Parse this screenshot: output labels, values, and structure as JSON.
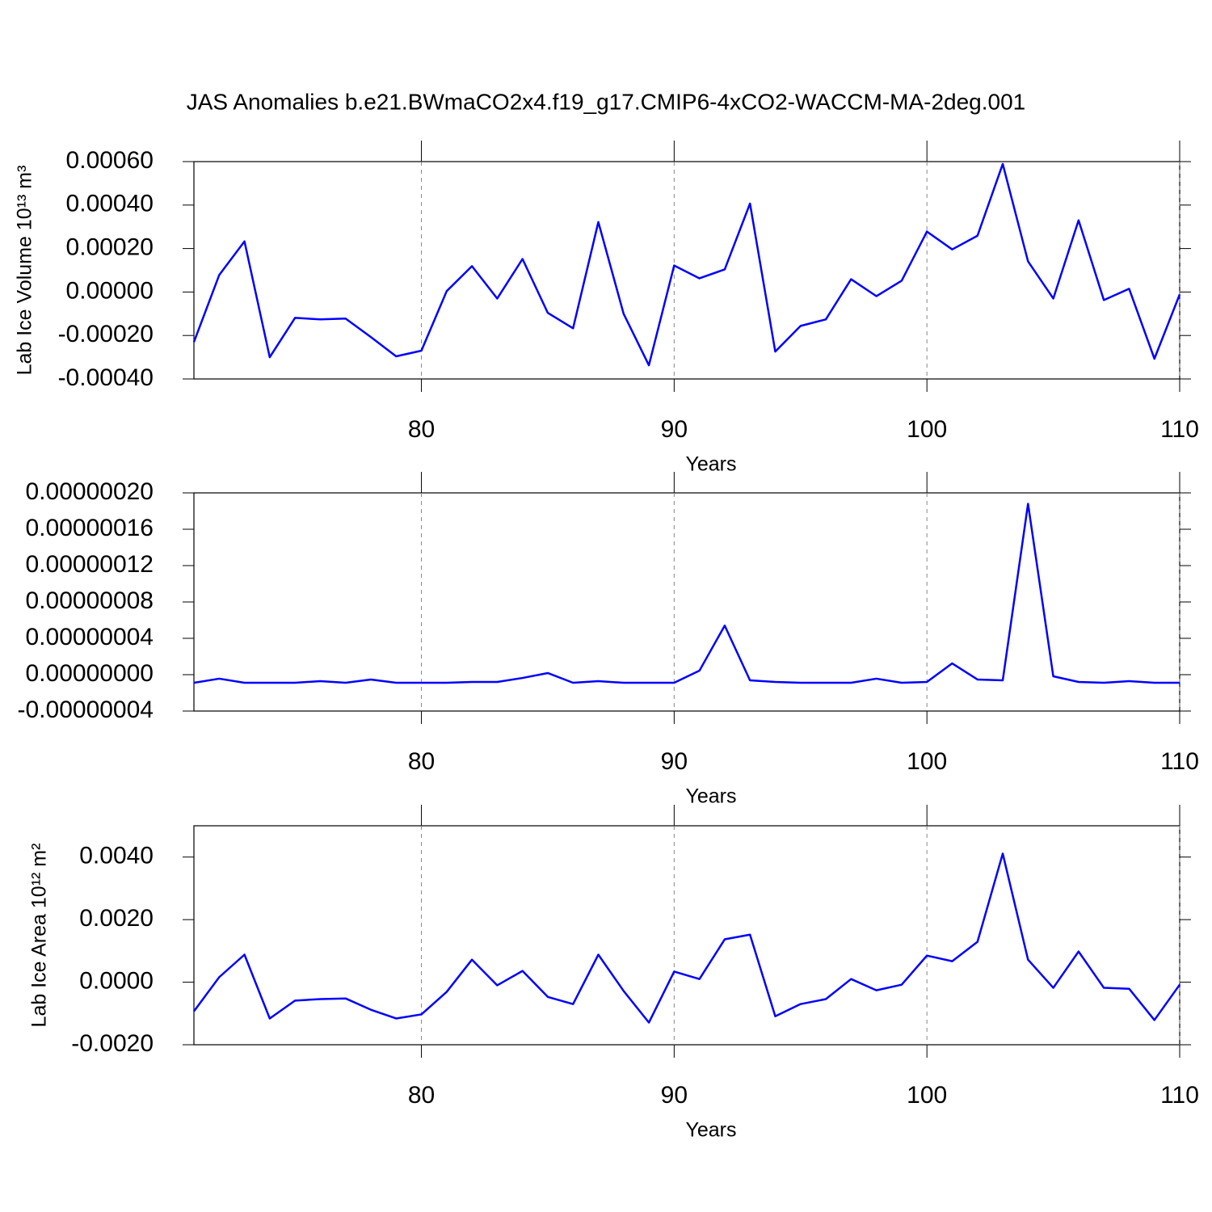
{
  "chart_data": [
    {
      "type": "line",
      "title": "JAS Anomalies b.e21.BWmaCO2x4.f19_g17.CMIP6-4xCO2-WACCM-MA-2deg.001",
      "ylabel": "Lab Ice Volume 10¹³ m³",
      "xlabel": "Years",
      "color": "#0000ff",
      "grid": true,
      "x": [
        71,
        72,
        73,
        74,
        75,
        76,
        77,
        78,
        79,
        80,
        81,
        82,
        83,
        84,
        85,
        86,
        87,
        88,
        89,
        90,
        91,
        92,
        93,
        94,
        95,
        96,
        97,
        98,
        99,
        100,
        101,
        102,
        103,
        104,
        105,
        106,
        107,
        108,
        109,
        110
      ],
      "values": [
        -0.00023,
        7.8e-05,
        0.000233,
        -0.0003,
        -0.000119,
        -0.000126,
        -0.000122,
        -0.000207,
        -0.000296,
        -0.00027,
        4e-06,
        0.000119,
        -3e-05,
        0.000152,
        -9.6e-05,
        -0.000167,
        0.000322,
        -0.0001,
        -0.000337,
        0.000122,
        6.3e-05,
        0.000104,
        0.000407,
        -0.000274,
        -0.000156,
        -0.000126,
        5.9e-05,
        -1.9e-05,
        5.2e-05,
        0.000278,
        0.000196,
        0.000259,
        0.000589,
        0.000141,
        -3e-05,
        0.00033,
        -3.7e-05,
        1.5e-05,
        -0.000307,
        -1.1e-05
      ],
      "xlim": [
        71,
        110
      ],
      "xticks": [
        80,
        90,
        100,
        110
      ],
      "ylim": [
        -0.0004,
        0.0006
      ],
      "yticks": [
        {
          "value": -0.0004,
          "label": "-0.00040"
        },
        {
          "value": -0.0002,
          "label": "-0.00020"
        },
        {
          "value": 0,
          "label": "0.00000"
        },
        {
          "value": 0.0002,
          "label": "0.00020"
        },
        {
          "value": 0.0004,
          "label": "0.00040"
        },
        {
          "value": 0.0006,
          "label": "0.00060"
        }
      ]
    },
    {
      "type": "line",
      "xlabel": "Years",
      "color": "#0000ff",
      "grid": true,
      "x": [
        71,
        72,
        73,
        74,
        75,
        76,
        77,
        78,
        79,
        80,
        81,
        82,
        83,
        84,
        85,
        86,
        87,
        88,
        89,
        90,
        91,
        92,
        93,
        94,
        95,
        96,
        97,
        98,
        99,
        100,
        101,
        102,
        103,
        104,
        105,
        106,
        107,
        108,
        109,
        110
      ],
      "values": [
        -8.9e-09,
        -4.4e-09,
        -8.9e-09,
        -8.9e-09,
        -8.9e-09,
        -7.1e-09,
        -8.9e-09,
        -5.3e-09,
        -8.9e-09,
        -8.9e-09,
        -8.9e-09,
        -8e-09,
        -8e-09,
        -3.6e-09,
        1.8e-09,
        -8.9e-09,
        -7.1e-09,
        -8.9e-09,
        -8.9e-09,
        -8.9e-09,
        4.4e-09,
        5.4e-08,
        -6.2e-09,
        -8e-09,
        -8.9e-09,
        -8.9e-09,
        -8.9e-09,
        -4.4e-09,
        -8.9e-09,
        -8e-09,
        1.24e-08,
        -5.3e-09,
        -6.2e-09,
        1.88e-07,
        -1.8e-09,
        -8e-09,
        -8.9e-09,
        -7.1e-09,
        -8.9e-09,
        -8.9e-09
      ],
      "xlim": [
        71,
        110
      ],
      "xticks": [
        80,
        90,
        100,
        110
      ],
      "ylim": [
        -4e-08,
        2e-07
      ],
      "yticks": [
        {
          "value": -4e-08,
          "label": "-0.00000004"
        },
        {
          "value": 0,
          "label": "0.00000000"
        },
        {
          "value": 4e-08,
          "label": "0.00000004"
        },
        {
          "value": 8e-08,
          "label": "0.00000008"
        },
        {
          "value": 1.2e-07,
          "label": "0.00000012"
        },
        {
          "value": 1.6e-07,
          "label": "0.00000016"
        },
        {
          "value": 2e-07,
          "label": "0.00000020"
        }
      ]
    },
    {
      "type": "line",
      "ylabel": "Lab Ice Area 10¹² m²",
      "xlabel": "Years",
      "color": "#0000ff",
      "grid": true,
      "x": [
        71,
        72,
        73,
        74,
        75,
        76,
        77,
        78,
        79,
        80,
        81,
        82,
        83,
        84,
        85,
        86,
        87,
        88,
        89,
        90,
        91,
        92,
        93,
        94,
        95,
        96,
        97,
        98,
        99,
        100,
        101,
        102,
        103,
        104,
        105,
        106,
        107,
        108,
        109,
        110
      ],
      "values": [
        -0.00093,
        0.00016,
        0.00088,
        -0.00116,
        -0.00059,
        -0.00054,
        -0.00052,
        -0.00088,
        -0.00116,
        -0.00103,
        -0.00031,
        0.00072,
        -0.0001,
        0.00036,
        -0.00047,
        -0.0007,
        0.00088,
        -0.00028,
        -0.00129,
        0.00034,
        0.0001,
        0.00137,
        0.00152,
        -0.00109,
        -0.0007,
        -0.00054,
        0.0001,
        -0.00026,
        -8e-05,
        0.00085,
        0.00067,
        0.00129,
        0.00411,
        0.00072,
        -0.00018,
        0.00098,
        -0.00018,
        -0.00021,
        -0.00121,
        -8e-05
      ],
      "xlim": [
        71,
        110
      ],
      "xticks": [
        80,
        90,
        100,
        110
      ],
      "ylim": [
        -0.002,
        0.005
      ],
      "yticks": [
        {
          "value": -0.002,
          "label": "-0.0020"
        },
        {
          "value": 0,
          "label": "0.0000"
        },
        {
          "value": 0.002,
          "label": "0.0020"
        },
        {
          "value": 0.004,
          "label": "0.0040"
        }
      ]
    }
  ]
}
